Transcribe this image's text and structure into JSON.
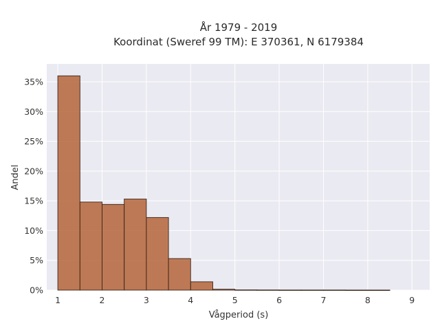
{
  "chart_data": {
    "type": "bar",
    "title": "År 1979 - 2019",
    "subtitle": "Koordinat (Sweref 99 TM): E 370361, N 6179384",
    "xlabel": "Vågperiod (s)",
    "ylabel": "Andel",
    "xlim": [
      0.75,
      9.4
    ],
    "ylim": [
      0,
      0.38
    ],
    "xticks": [
      1,
      2,
      3,
      4,
      5,
      6,
      7,
      8,
      9
    ],
    "xtick_labels": [
      "1",
      "2",
      "3",
      "4",
      "5",
      "6",
      "7",
      "8",
      "9"
    ],
    "yticks": [
      0,
      0.05,
      0.1,
      0.15,
      0.2,
      0.25,
      0.3,
      0.35
    ],
    "ytick_labels": [
      "0%",
      "5%",
      "10%",
      "15%",
      "20%",
      "25%",
      "30%",
      "35%"
    ],
    "grid": true,
    "bin_width": 0.5,
    "bins": [
      {
        "x0": 1.0,
        "x1": 1.5,
        "value": 0.36
      },
      {
        "x0": 1.5,
        "x1": 2.0,
        "value": 0.148
      },
      {
        "x0": 2.0,
        "x1": 2.5,
        "value": 0.144
      },
      {
        "x0": 2.5,
        "x1": 3.0,
        "value": 0.153
      },
      {
        "x0": 3.0,
        "x1": 3.5,
        "value": 0.122
      },
      {
        "x0": 3.5,
        "x1": 4.0,
        "value": 0.053
      },
      {
        "x0": 4.0,
        "x1": 4.5,
        "value": 0.014
      },
      {
        "x0": 4.5,
        "x1": 5.0,
        "value": 0.0015
      },
      {
        "x0": 5.0,
        "x1": 5.5,
        "value": 0.0004
      },
      {
        "x0": 5.5,
        "x1": 6.0,
        "value": 0.0003
      },
      {
        "x0": 6.0,
        "x1": 6.5,
        "value": 0.0002
      },
      {
        "x0": 6.5,
        "x1": 7.0,
        "value": 0.0002
      },
      {
        "x0": 7.0,
        "x1": 7.5,
        "value": 0.0002
      },
      {
        "x0": 7.5,
        "x1": 8.0,
        "value": 0.0001
      },
      {
        "x0": 8.0,
        "x1": 8.5,
        "value": 0.0001
      }
    ],
    "colors": {
      "bar": "#b5653a",
      "bar_edge": "#3a2418",
      "plot_background": "#eaeaf2",
      "grid": "#ffffff"
    }
  }
}
